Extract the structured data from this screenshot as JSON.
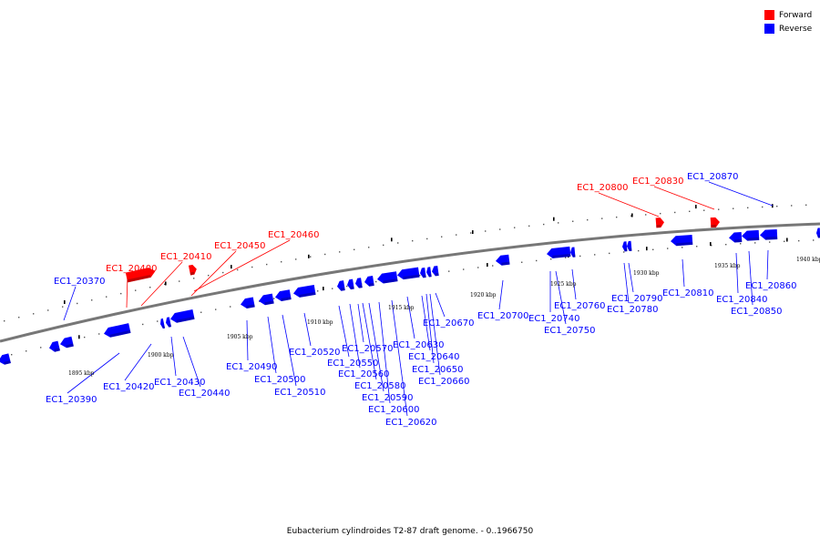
{
  "legend": {
    "forward_label": "Forward",
    "reverse_label": "Reverse",
    "forward_color": "#ff0000",
    "reverse_color": "#0000ff"
  },
  "caption": "Eubacterium cylindroides T2-87 draft genome. - 0..1966750",
  "scale_labels": [
    "1895 kbp",
    "1900 kbp",
    "1905 kbp",
    "1910 kbp",
    "1915 kbp",
    "1920 kbp",
    "1925 kbp",
    "1930 kbp",
    "1935 kbp",
    "1940 kbp"
  ],
  "genes_forward": [
    "EC1_20400",
    "EC1_20410",
    "EC1_20450",
    "EC1_20460",
    "EC1_20800",
    "EC1_20830"
  ],
  "genes_reverse": [
    "EC1_20370",
    "EC1_20390",
    "EC1_20420",
    "EC1_20430",
    "EC1_20440",
    "EC1_20490",
    "EC1_20500",
    "EC1_20510",
    "EC1_20520",
    "EC1_20550",
    "EC1_20560",
    "EC1_20570",
    "EC1_20580",
    "EC1_20590",
    "EC1_20600",
    "EC1_20620",
    "EC1_20630",
    "EC1_20640",
    "EC1_20650",
    "EC1_20660",
    "EC1_20670",
    "EC1_20700",
    "EC1_20740",
    "EC1_20750",
    "EC1_20760",
    "EC1_20780",
    "EC1_20790",
    "EC1_20810",
    "EC1_20840",
    "EC1_20850",
    "EC1_20860",
    "EC1_20870"
  ]
}
